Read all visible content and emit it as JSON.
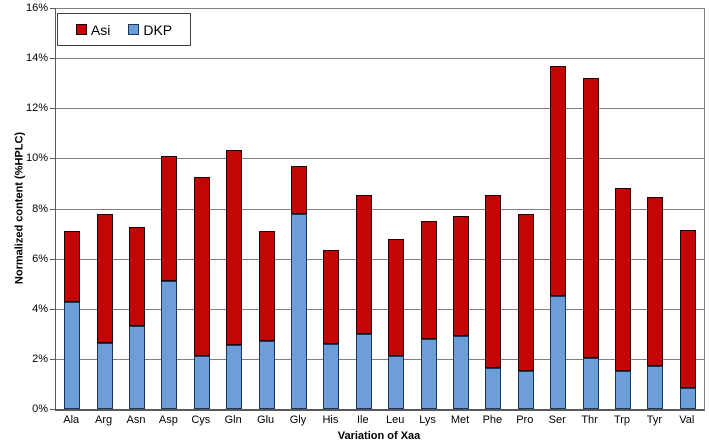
{
  "chart_data": {
    "type": "bar",
    "stacked": true,
    "title": "",
    "xlabel": "Variation of Xaa",
    "ylabel": "Normalized content (%HPLC)",
    "ylim": [
      0,
      16
    ],
    "ytick_step": 2,
    "ytick_suffix": "%",
    "grid": true,
    "legend_position": "top-left-inside",
    "legend_order": [
      "Asi",
      "DKP"
    ],
    "categories": [
      "Ala",
      "Arg",
      "Asn",
      "Asp",
      "Cys",
      "Gln",
      "Glu",
      "Gly",
      "His",
      "Ile",
      "Leu",
      "Lys",
      "Met",
      "Phe",
      "Pro",
      "Ser",
      "Thr",
      "Trp",
      "Tyr",
      "Val"
    ],
    "series": [
      {
        "name": "DKP",
        "color": "#6D9ED8",
        "border_color": "#1B365D",
        "values": [
          4.25,
          2.65,
          3.3,
          5.1,
          2.1,
          2.55,
          2.7,
          7.8,
          2.6,
          3.0,
          2.1,
          2.8,
          2.9,
          1.65,
          1.5,
          4.5,
          2.05,
          1.5,
          1.7,
          0.85
        ]
      },
      {
        "name": "Asi",
        "color": "#C20606",
        "border_color": "#200000",
        "values": [
          2.85,
          5.15,
          3.95,
          5.0,
          7.15,
          7.8,
          4.4,
          1.9,
          3.75,
          5.55,
          4.7,
          4.7,
          4.8,
          6.9,
          6.3,
          9.2,
          11.15,
          7.3,
          6.75,
          6.3
        ]
      }
    ],
    "stacked_totals": [
      7.1,
      7.8,
      7.25,
      10.1,
      9.25,
      10.35,
      7.1,
      9.7,
      6.35,
      8.55,
      6.8,
      7.5,
      7.7,
      8.55,
      7.8,
      13.7,
      13.2,
      8.8,
      8.45,
      7.15
    ]
  },
  "colors": {
    "grid": "#808080",
    "axis": "#595959",
    "background": "#FFFFFF",
    "text": "#000000"
  }
}
